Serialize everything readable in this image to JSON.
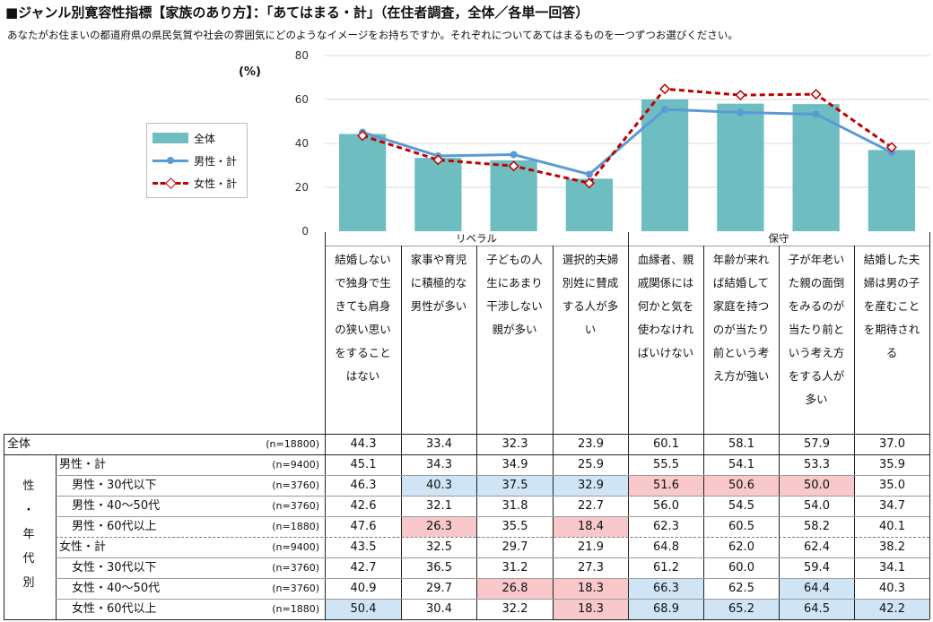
{
  "title": "■ジャンル別寛容性指標【家族のあり方】：「あてはまる・計」（在住者調査，全体／各単一回答）",
  "question": "あなたがお住まいの都道府県の県民気質や社会の雰囲気にどのようなイメージをお持ちですか。それぞれについてあてはまるものを一つずつお選びください。",
  "unit": "(%)",
  "colors": {
    "bar": "#6dbdc1",
    "male_line": "#5b9bd5",
    "female_line": "#c00000",
    "highlight_high": "#cfe5f5",
    "highlight_low": "#f8c8cb"
  },
  "chart_data": {
    "type": "bar",
    "ylim": [
      0,
      80
    ],
    "yticks": [
      "0",
      "20",
      "40",
      "60",
      "80"
    ],
    "grid": true,
    "legend_position": "left",
    "categories": [
      "結婚しないで独身で生きても肩身の狭い思いをすることはない",
      "家事や育児に積極的な男性が多い",
      "子どもの人生にあまり干渉しない親が多い",
      "選択的夫婦別姓に賛成する人が多い",
      "血縁者、親戚関係には何かと気を使わなければいけない",
      "年齢が来れば結婚して家庭を持つのが当たり前という考え方が強い",
      "子が年老いた親の面倒をみるのが当たり前という考え方をする人が多い",
      "結婚した夫婦は男の子を産むことを期待される"
    ],
    "series": [
      {
        "name": "全体",
        "kind": "bar",
        "values": [
          44.3,
          33.4,
          32.3,
          23.9,
          60.1,
          58.1,
          57.9,
          37.0
        ]
      },
      {
        "name": "男性・計",
        "kind": "line",
        "values": [
          45.1,
          34.3,
          34.9,
          25.9,
          55.5,
          54.1,
          53.3,
          35.9
        ]
      },
      {
        "name": "女性・計",
        "kind": "line-dashed",
        "values": [
          43.5,
          32.5,
          29.7,
          21.9,
          64.8,
          62.0,
          62.4,
          38.2
        ]
      }
    ]
  },
  "groups": [
    "リベラル",
    "保守"
  ],
  "category_lines": [
    [
      "結婚しない",
      "で独身で生",
      "きても肩身",
      "の狭い思い",
      "をすること",
      "はない"
    ],
    [
      "家事や育児",
      "に積極的な",
      "男性が多い"
    ],
    [
      "子どもの人",
      "生にあまり",
      "干渉しない",
      "親が多い"
    ],
    [
      "選択的夫婦",
      "別姓に賛成",
      "する人が多",
      "い"
    ],
    [
      "血縁者、親",
      "戚関係には",
      "何かと気を",
      "使わなけれ",
      "ばいけない"
    ],
    [
      "年齢が来れ",
      "ば結婚して",
      "家庭を持つ",
      "のが当たり",
      "前という考",
      "え方が強い"
    ],
    [
      "子が年老い",
      "た親の面倒",
      "をみるのが",
      "当たり前と",
      "いう考え方",
      "をする人が",
      "多い"
    ],
    [
      "結婚した夫",
      "婦は男の子",
      "を産むこと",
      "を期待され",
      "る"
    ]
  ],
  "side_label": [
    "性",
    "・",
    "年",
    "代",
    "別"
  ],
  "rows": [
    {
      "label": "全体",
      "n": "(n=18800)",
      "values": [
        "44.3",
        "33.4",
        "32.3",
        "23.9",
        "60.1",
        "58.1",
        "57.9",
        "37.0"
      ]
    },
    {
      "label": "男性・計",
      "n": "(n=9400)",
      "values": [
        "45.1",
        "34.3",
        "34.9",
        "25.9",
        "55.5",
        "54.1",
        "53.3",
        "35.9"
      ]
    },
    {
      "label": "男性・30代以下",
      "n": "(n=3760)",
      "values": [
        "46.3",
        "40.3",
        "37.5",
        "32.9",
        "51.6",
        "50.6",
        "50.0",
        "35.0"
      ]
    },
    {
      "label": "男性・40～50代",
      "n": "(n=3760)",
      "values": [
        "42.6",
        "32.1",
        "31.8",
        "22.7",
        "56.0",
        "54.5",
        "54.0",
        "34.7"
      ]
    },
    {
      "label": "男性・60代以上",
      "n": "(n=1880)",
      "values": [
        "47.6",
        "26.3",
        "35.5",
        "18.4",
        "62.3",
        "60.5",
        "58.2",
        "40.1"
      ]
    },
    {
      "label": "女性・計",
      "n": "(n=9400)",
      "values": [
        "43.5",
        "32.5",
        "29.7",
        "21.9",
        "64.8",
        "62.0",
        "62.4",
        "38.2"
      ]
    },
    {
      "label": "女性・30代以下",
      "n": "(n=3760)",
      "values": [
        "42.7",
        "36.5",
        "31.2",
        "27.3",
        "61.2",
        "60.0",
        "59.4",
        "34.1"
      ]
    },
    {
      "label": "女性・40～50代",
      "n": "(n=3760)",
      "values": [
        "40.9",
        "29.7",
        "26.8",
        "18.3",
        "66.3",
        "62.5",
        "64.4",
        "40.3"
      ]
    },
    {
      "label": "女性・60代以上",
      "n": "(n=1880)",
      "values": [
        "50.4",
        "30.4",
        "32.2",
        "18.3",
        "68.9",
        "65.2",
        "64.5",
        "42.2"
      ]
    }
  ],
  "highlights": {
    "high": [
      [
        2,
        1
      ],
      [
        2,
        2
      ],
      [
        2,
        3
      ],
      [
        8,
        0
      ],
      [
        7,
        4
      ],
      [
        8,
        4
      ],
      [
        8,
        5
      ],
      [
        7,
        6
      ],
      [
        8,
        6
      ],
      [
        8,
        7
      ]
    ],
    "low": [
      [
        4,
        1
      ],
      [
        4,
        3
      ],
      [
        2,
        4
      ],
      [
        2,
        5
      ],
      [
        2,
        6
      ],
      [
        7,
        2
      ],
      [
        7,
        3
      ],
      [
        8,
        3
      ]
    ]
  }
}
